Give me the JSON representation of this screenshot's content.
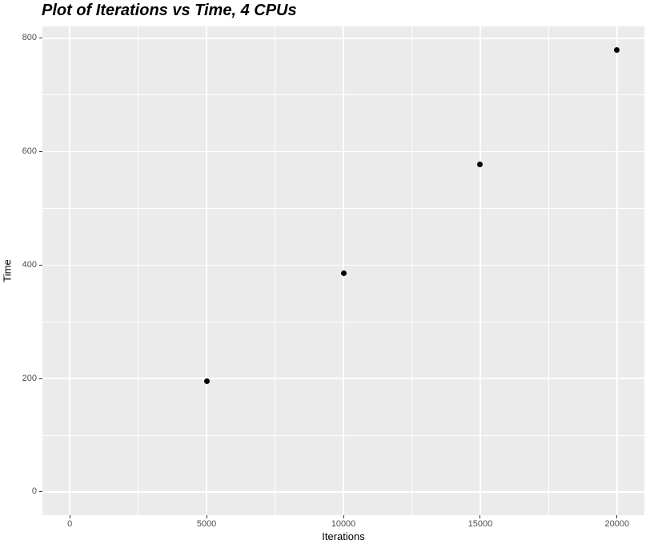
{
  "chart": {
    "title": "Plot of Iterations vs Time, 4 CPUs",
    "xlabel": "Iterations",
    "ylabel": "Time"
  },
  "chart_data": {
    "type": "scatter",
    "title": "Plot of Iterations vs Time, 4 CPUs",
    "xlabel": "Iterations",
    "ylabel": "Time",
    "x": [
      5000,
      10000,
      15000,
      20000
    ],
    "y": [
      196,
      386,
      577,
      780
    ],
    "x_ticks": [
      0,
      5000,
      10000,
      15000,
      20000
    ],
    "x_tick_labels": [
      "0",
      "5000",
      "10000",
      "15000",
      "20000"
    ],
    "y_ticks": [
      0,
      200,
      400,
      600,
      800
    ],
    "y_tick_labels": [
      "0",
      "200",
      "400",
      "600",
      "800"
    ],
    "x_minor_ticks": [
      2500,
      7500,
      12500,
      17500
    ],
    "y_minor_ticks": [
      100,
      300,
      500,
      700
    ],
    "xlim": [
      -1000,
      21000
    ],
    "ylim": [
      -41,
      821
    ],
    "grid": true,
    "legend": false,
    "colors": {
      "panel_background": "#EBEBEB",
      "gridline": "#FFFFFF",
      "point": "#000000",
      "tick_label": "#4D4D4D",
      "tick_mark": "#333333",
      "title": "#000000"
    }
  }
}
